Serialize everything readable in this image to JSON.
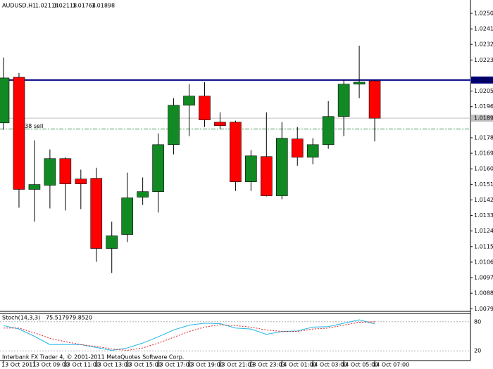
{
  "chart_data": [
    {
      "type": "candlestick",
      "title": "AUDUSD,H1",
      "categories": [
        "13 Oct 2011",
        null,
        "13 Oct 09:00",
        null,
        "13 Oct 11:00",
        null,
        "13 Oct 13:00",
        null,
        "13 Oct 15:00",
        null,
        "13 Oct 17:00",
        null,
        "13 Oct 19:00",
        null,
        "13 Oct 21:03",
        null,
        "13 Oct 23:03",
        null,
        "14 Oct 01:00",
        null,
        "14 Oct 03:00",
        null,
        "14 Oct 05:00",
        null,
        "14 Oct 07:00"
      ],
      "open": [
        1.01871,
        1.02135,
        1.01486,
        1.0151,
        1.01664,
        1.01546,
        1.0155,
        1.01144,
        1.01225,
        1.01441,
        1.01473,
        1.01745,
        1.01973,
        1.02026,
        1.01875,
        1.01875,
        1.0153,
        1.01676,
        1.01449,
        1.01778,
        1.01672,
        1.01745,
        1.01908,
        1.02095,
        1.02114
      ],
      "high": [
        1.02249,
        1.0216,
        1.0177,
        1.01717,
        1.01672,
        1.016,
        1.01611,
        1.01299,
        1.01583,
        1.01555,
        1.0181,
        1.02014,
        1.02095,
        1.02107,
        1.01932,
        1.01884,
        1.01713,
        1.01932,
        1.01875,
        1.01847,
        1.01782,
        1.01997,
        1.02123,
        1.02318,
        1.02118
      ],
      "low": [
        1.01831,
        1.0138,
        1.01299,
        1.01376,
        1.01364,
        1.01372,
        1.01067,
        1.01002,
        1.01181,
        1.01396,
        1.01352,
        1.01689,
        1.01794,
        1.01847,
        1.01835,
        1.01477,
        1.01477,
        1.01445,
        1.01429,
        1.01623,
        1.01632,
        1.01721,
        1.01794,
        1.02014,
        1.01764
      ],
      "close": [
        1.02131,
        1.01486,
        1.01514,
        1.01664,
        1.01518,
        1.01518,
        1.01144,
        1.01217,
        1.01437,
        1.01473,
        1.01745,
        1.01973,
        1.02026,
        1.01888,
        1.01855,
        1.0153,
        1.0168,
        1.01449,
        1.01782,
        1.01672,
        1.01745,
        1.01908,
        1.02095,
        1.02107,
        1.01898
      ],
      "up_color": "#118a24",
      "down_color": "#ff0000",
      "ylim": [
        1.0078,
        1.0257
      ],
      "yticks": [
        1.02505,
        1.02415,
        1.02325,
        1.02235,
        1.02055,
        1.01965,
        1.01785,
        1.01695,
        1.01605,
        1.01515,
        1.01425,
        1.01335,
        1.01245,
        1.01155,
        1.01065,
        1.00975,
        1.00885,
        1.00795
      ],
      "hlines": [
        {
          "value": 1.02119,
          "color": "#000080"
        },
        {
          "value": 1.01835,
          "color": "#3c9a50",
          "label": "938 sell"
        }
      ]
    },
    {
      "type": "line",
      "title": "Stoch(14,3,3)",
      "series": [
        {
          "color": "#22b5e6",
          "values": [
            72,
            65,
            50,
            33,
            33,
            33,
            27,
            21,
            26,
            36,
            49,
            63,
            73,
            77,
            76,
            67,
            65,
            54,
            60,
            61,
            69,
            70,
            77,
            84,
            75.5179
          ]
        },
        {
          "color": "#e02020",
          "dashed": true,
          "values": [
            67,
            67,
            57,
            46,
            39,
            33,
            29,
            24,
            21,
            26,
            36,
            48,
            60,
            69,
            74,
            72,
            69,
            63,
            60,
            60,
            65,
            67,
            73,
            79,
            79.852
          ],
          "value_labels": [
            null,
            null,
            null,
            null,
            null,
            null,
            null,
            null,
            null,
            null,
            null,
            null,
            null,
            null,
            null,
            null,
            null,
            null,
            null,
            null,
            null,
            null,
            null,
            null,
            "79.8520"
          ]
        }
      ],
      "ylim": [
        0,
        100
      ],
      "yticks": [
        80,
        20
      ]
    }
  ],
  "footer": "Interbank FX Trader 4, © 2001-2011 MetaQuotes Software Corp."
}
